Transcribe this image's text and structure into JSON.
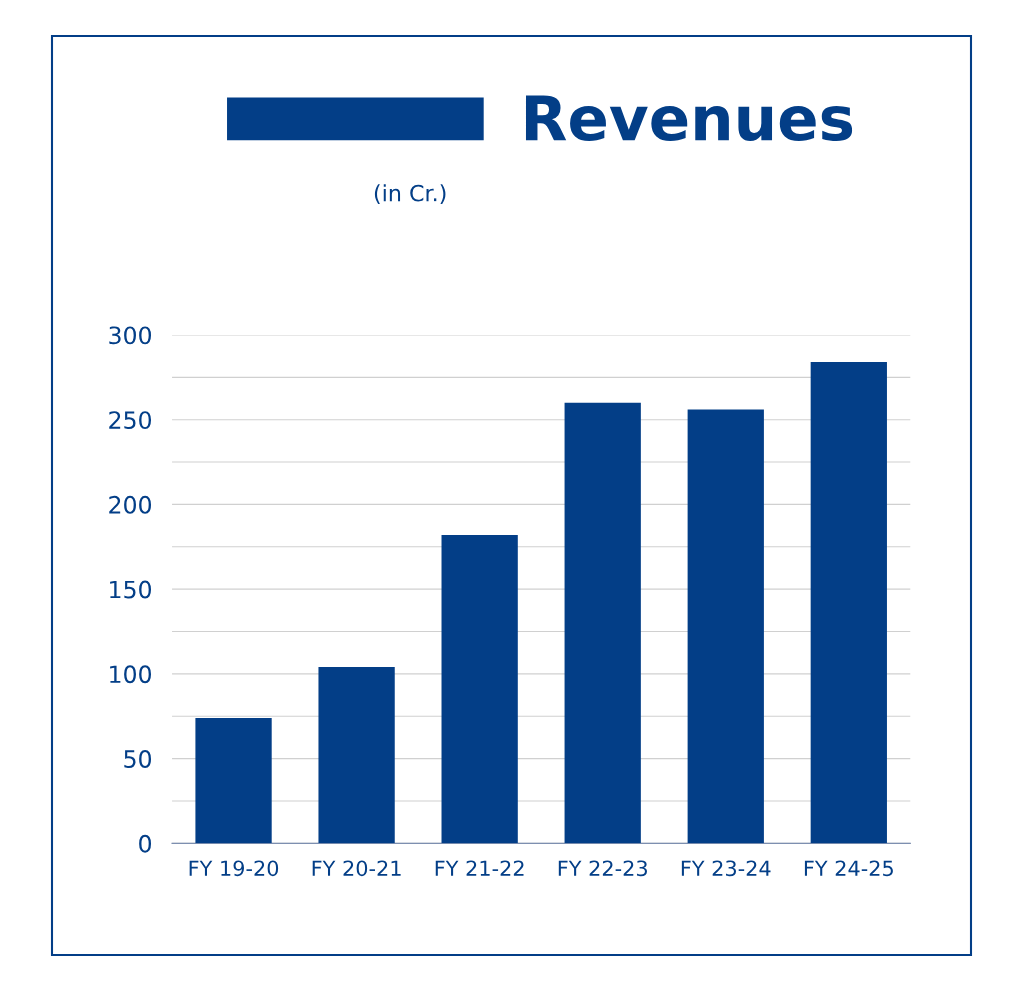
{
  "chart_data": {
    "type": "bar",
    "subtitle": "(in Cr.)",
    "categories": [
      "FY 19-20",
      "FY 20-21",
      "FY 21-22",
      "FY 22-23",
      "FY 23-24",
      "FY 24-25"
    ],
    "series": [
      {
        "name": "Revenues",
        "color": "#033e87",
        "values": [
          74,
          104,
          182,
          260,
          256,
          284
        ]
      }
    ],
    "ylim": [
      0,
      300
    ],
    "yticks": [
      0,
      {
        "value": 25,
        "label": null
      },
      50,
      {
        "value": 75,
        "label": null
      },
      100,
      {
        "value": 125,
        "label": null
      },
      150,
      {
        "value": 175,
        "label": null
      },
      200,
      {
        "value": 225,
        "label": null
      },
      250,
      {
        "value": 275,
        "label": null
      },
      300
    ],
    "grid": "y",
    "legend": "top"
  }
}
